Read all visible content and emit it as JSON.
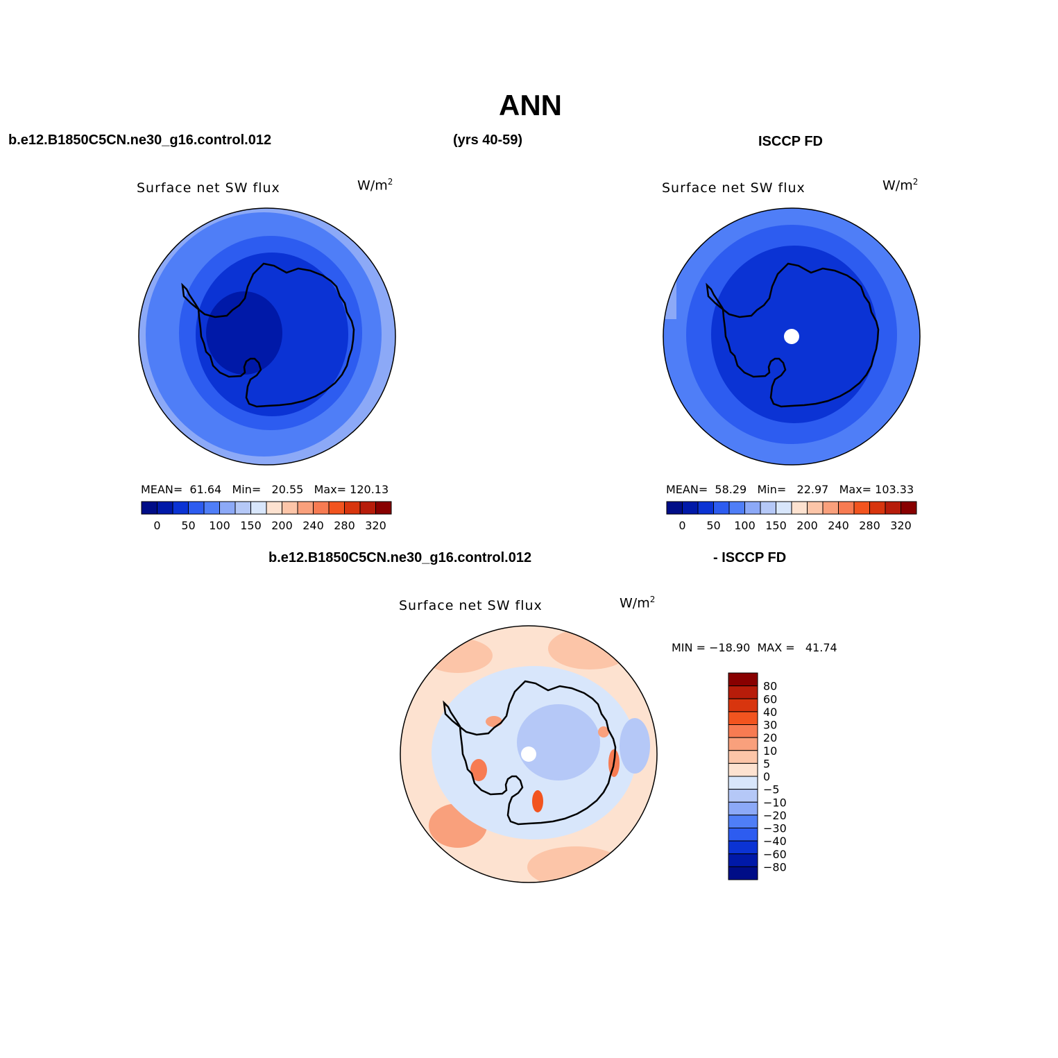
{
  "header": {
    "title": "ANN",
    "case_name": "b.e12.B1850C5CN.ne30_g16.control.012",
    "years": "(yrs 40-59)",
    "obs_name": "ISCCP FD"
  },
  "panels": {
    "model": {
      "field": "Surface net SW flux",
      "units": "W/m",
      "units_sup": "2",
      "stats": "MEAN=  61.64   Min=   20.55   Max= 120.13"
    },
    "obs": {
      "field": "Surface net SW flux",
      "units": "W/m",
      "units_sup": "2",
      "stats": "MEAN=  58.29   Min=   22.97   Max= 103.33"
    },
    "diff": {
      "case_name": "b.e12.B1850C5CN.ne30_g16.control.012",
      "obs_name": "- ISCCP FD",
      "field": "Surface net SW flux",
      "units": "W/m",
      "units_sup": "2",
      "stats": "MIN = −18.90  MAX =   41.74"
    }
  },
  "colorbar_main": {
    "colors": [
      "#000d87",
      "#0019a8",
      "#0b33d4",
      "#2d5cf0",
      "#4f7ef7",
      "#8ca9f7",
      "#b5c8f7",
      "#d8e6fb",
      "#fde2d0",
      "#fcc5a8",
      "#f9a07c",
      "#f77b52",
      "#f2541f",
      "#d8350e",
      "#b71c0a",
      "#880000"
    ],
    "labels": [
      "0",
      "50",
      "100",
      "150",
      "200",
      "240",
      "280",
      "320"
    ]
  },
  "colorbar_diff": {
    "colors": [
      "#880000",
      "#b71c0a",
      "#d8350e",
      "#f2541f",
      "#f77b52",
      "#f9a07c",
      "#fcc5a8",
      "#fde2d0",
      "#d8e6fb",
      "#b5c8f7",
      "#8ca9f7",
      "#4f7ef7",
      "#2d5cf0",
      "#0b33d4",
      "#0019a8",
      "#000d87"
    ],
    "labels": [
      "80",
      "60",
      "40",
      "30",
      "20",
      "10",
      "5",
      "0",
      "−5",
      "−10",
      "−20",
      "−30",
      "−40",
      "−60",
      "−80"
    ]
  }
}
